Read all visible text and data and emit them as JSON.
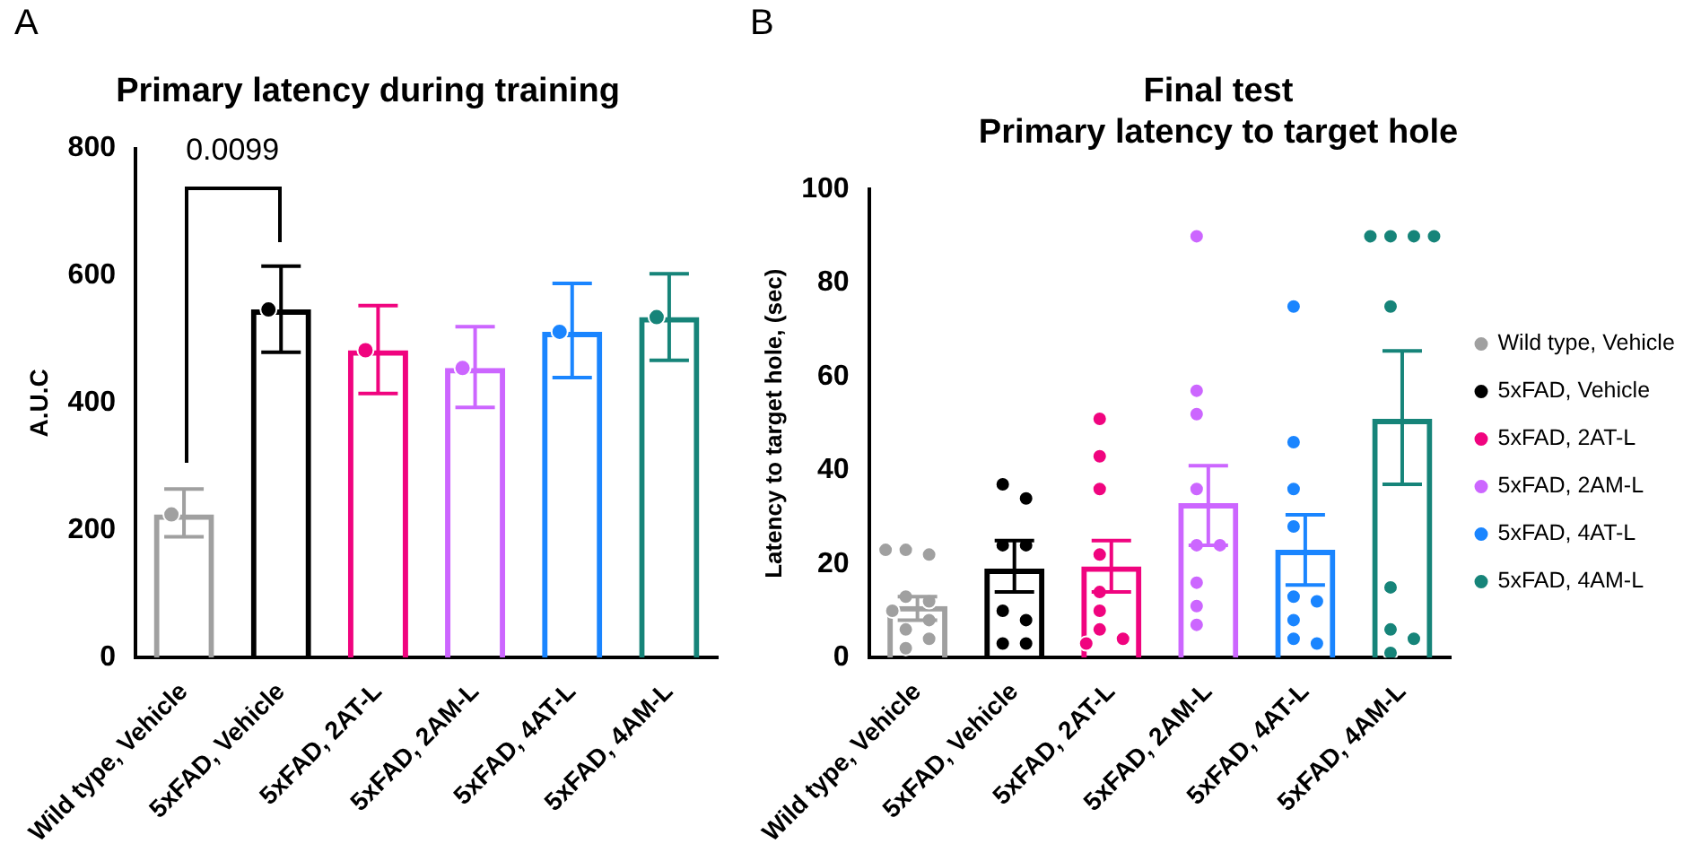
{
  "chart_data": [
    {
      "type": "bar",
      "title": "Primary latency during training",
      "ylabel": "A.U.C",
      "annotations": [
        "A",
        "0.0099"
      ],
      "categories": [
        "Wild type, Vehicle",
        "5xFAD, Vehicle",
        "5xFAD, 2AT-L",
        "5xFAD, 2AM-L",
        "5xFAD, 4AT-L",
        "5xFAD, 4AM-L"
      ],
      "values": [
        225,
        547,
        483,
        455,
        512,
        535
      ],
      "colors": [
        "#a0a0a0",
        "#000000",
        "#f0047f",
        "#cc66ff",
        "#1a85ff",
        "#168479"
      ],
      "errors": [
        [
          190,
          265
        ],
        [
          480,
          615
        ],
        [
          415,
          553
        ],
        [
          393,
          520
        ],
        [
          440,
          588
        ],
        [
          467,
          603
        ]
      ],
      "series": [
        {
          "type": "scatter",
          "colors": [
            "#a0a0a0",
            "#000000",
            "#f0047f",
            "#cc66ff",
            "#1a85ff",
            "#168479"
          ],
          "x": [
            "Wild type, Vehicle",
            "5xFAD, Vehicle",
            "5xFAD, 2AT-L",
            "5xFAD, 2AM-L",
            "5xFAD, 4AT-L",
            "5xFAD, 4AM-L"
          ],
          "values": [
            225,
            547,
            483,
            455,
            512,
            535
          ]
        }
      ],
      "ylim": [
        0,
        800
      ],
      "yticks": [
        0,
        200,
        400,
        600,
        800
      ],
      "grid": false,
      "legend": false,
      "marker": "circle"
    },
    {
      "type": "bar",
      "title": "Final test",
      "subtitle": "Primary latency to target hole",
      "ylabel": "Latency to target hole, (sec)",
      "annotations": [
        "B"
      ],
      "categories": [
        "Wild type, Vehicle",
        "5xFAD, Vehicle",
        "5xFAD, 2AT-L",
        "5xFAD, 2AM-L",
        "5xFAD, 4AT-L",
        "5xFAD, 4AM-L"
      ],
      "values": [
        11,
        19,
        19.5,
        33,
        23,
        51
      ],
      "colors": [
        "#a0a0a0",
        "#000000",
        "#f0047f",
        "#cc66ff",
        "#1a85ff",
        "#168479"
      ],
      "errors": [
        [
          8,
          13
        ],
        [
          14,
          25
        ],
        [
          14,
          25
        ],
        [
          24,
          41
        ],
        [
          15.5,
          30.5
        ],
        [
          37,
          65.5
        ]
      ],
      "series": [
        {
          "type": "scatter",
          "name": "Wild type, Vehicle",
          "color": "#a0a0a0",
          "x": [
            "Wild type, Vehicle",
            "Wild type, Vehicle",
            "Wild type, Vehicle",
            "Wild type, Vehicle",
            "Wild type, Vehicle",
            "Wild type, Vehicle",
            "Wild type, Vehicle",
            "Wild type, Vehicle",
            "Wild type, Vehicle",
            "Wild type, Vehicle"
          ],
          "values": [
            23,
            22,
            23,
            13,
            12,
            10,
            8,
            6,
            4,
            2
          ]
        },
        {
          "type": "scatter",
          "name": "5xFAD, Vehicle",
          "color": "#000000",
          "x": [
            "5xFAD, Vehicle",
            "5xFAD, Vehicle",
            "5xFAD, Vehicle",
            "5xFAD, Vehicle",
            "5xFAD, Vehicle",
            "5xFAD, Vehicle",
            "5xFAD, Vehicle",
            "5xFAD, Vehicle"
          ],
          "values": [
            37,
            34,
            24,
            24,
            10,
            8,
            3,
            3
          ]
        },
        {
          "type": "scatter",
          "name": "5xFAD, 2AT-L",
          "color": "#f0047f",
          "x": [
            "5xFAD, 2AT-L",
            "5xFAD, 2AT-L",
            "5xFAD, 2AT-L",
            "5xFAD, 2AT-L",
            "5xFAD, 2AT-L",
            "5xFAD, 2AT-L",
            "5xFAD, 2AT-L",
            "5xFAD, 2AT-L",
            "5xFAD, 2AT-L"
          ],
          "values": [
            51,
            43,
            36,
            22,
            14,
            10,
            6,
            4,
            3
          ]
        },
        {
          "type": "scatter",
          "name": "5xFAD, 2AM-L",
          "color": "#cc66ff",
          "x": [
            "5xFAD, 2AM-L",
            "5xFAD, 2AM-L",
            "5xFAD, 2AM-L",
            "5xFAD, 2AM-L",
            "5xFAD, 2AM-L",
            "5xFAD, 2AM-L",
            "5xFAD, 2AM-L",
            "5xFAD, 2AM-L",
            "5xFAD, 2AM-L"
          ],
          "values": [
            90,
            57,
            52,
            36,
            24,
            24,
            16,
            11,
            7
          ]
        },
        {
          "type": "scatter",
          "name": "5xFAD, 4AT-L",
          "color": "#1a85ff",
          "x": [
            "5xFAD, 4AT-L",
            "5xFAD, 4AT-L",
            "5xFAD, 4AT-L",
            "5xFAD, 4AT-L",
            "5xFAD, 4AT-L",
            "5xFAD, 4AT-L",
            "5xFAD, 4AT-L",
            "5xFAD, 4AT-L",
            "5xFAD, 4AT-L"
          ],
          "values": [
            75,
            46,
            36,
            28,
            13,
            12,
            8,
            4,
            3
          ]
        },
        {
          "type": "scatter",
          "name": "5xFAD, 4AM-L",
          "color": "#168479",
          "x": [
            "5xFAD, 4AM-L",
            "5xFAD, 4AM-L",
            "5xFAD, 4AM-L",
            "5xFAD, 4AM-L",
            "5xFAD, 4AM-L",
            "5xFAD, 4AM-L",
            "5xFAD, 4AM-L",
            "5xFAD, 4AM-L",
            "5xFAD, 4AM-L"
          ],
          "values": [
            90,
            90,
            90,
            90,
            75,
            15,
            6,
            4,
            1
          ]
        }
      ],
      "ylim": [
        0,
        100
      ],
      "yticks": [
        0,
        20,
        40,
        60,
        80,
        100
      ],
      "grid": false,
      "legend": "right",
      "marker": "circle"
    }
  ]
}
